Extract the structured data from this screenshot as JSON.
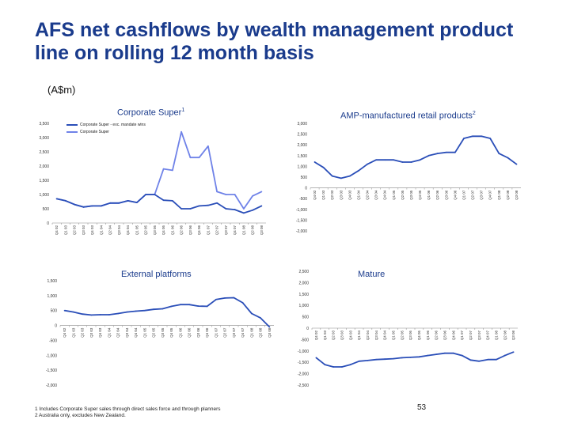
{
  "page": {
    "title": "AFS net cashflows by wealth management product line on rolling 12 month basis",
    "unit": "(A$m)",
    "footnote_1": "1 Includes Corporate Super sales through direct sales force and through planners",
    "footnote_2": "2 Australia only, excludes New Zealand.",
    "page_number": "53"
  },
  "chart_data": [
    {
      "id": "corporate-super",
      "type": "line",
      "title": "Corporate Super",
      "title_sup": "1",
      "categories": [
        "Q4 02",
        "Q1 03",
        "Q2 03",
        "Q3 03",
        "Q4 03",
        "Q1 04",
        "Q2 04",
        "Q3 04",
        "Q4 04",
        "Q1 05",
        "Q2 05",
        "Q3 05",
        "Q4 05",
        "Q1 06",
        "Q2 06",
        "Q3 06",
        "Q4 06",
        "Q1 07",
        "Q2 07",
        "Q3 07",
        "Q4 07",
        "Q1 08",
        "Q2 08",
        "Q3 08"
      ],
      "ylim": [
        0,
        3500
      ],
      "yticks": [
        "3,500",
        "3,000",
        "2,500",
        "2,000",
        "1,500",
        "1,000",
        "500",
        "0"
      ],
      "series": [
        {
          "name": "Corporate Super - exc. mandate wins",
          "color": "#2a4eb8",
          "values": [
            850,
            780,
            650,
            560,
            600,
            600,
            700,
            700,
            780,
            720,
            1000,
            1000,
            800,
            780,
            500,
            500,
            600,
            620,
            700,
            500,
            470,
            350,
            450,
            600
          ]
        },
        {
          "name": "Corporate Super",
          "color": "#6f82e8",
          "values": [
            850,
            780,
            650,
            560,
            600,
            600,
            700,
            700,
            780,
            720,
            1000,
            1000,
            1900,
            1850,
            3200,
            2300,
            2300,
            2700,
            1100,
            1000,
            1000,
            500,
            950,
            1100
          ]
        }
      ]
    },
    {
      "id": "amp-manufactured",
      "type": "line",
      "title": "AMP-manufactured retail products",
      "title_sup": "2",
      "categories": [
        "Q4 02",
        "Q1 03",
        "Q2 03",
        "Q3 03",
        "Q4 03",
        "Q1 04",
        "Q2 04",
        "Q3 04",
        "Q4 04",
        "Q1 05",
        "Q2 05",
        "Q3 05",
        "Q4 05",
        "Q1 06",
        "Q2 06",
        "Q3 06",
        "Q4 06",
        "Q1 07",
        "Q2 07",
        "Q3 07",
        "Q4 07",
        "Q1 08",
        "Q2 08",
        "Q3 08"
      ],
      "ylim": [
        -2000,
        3000
      ],
      "yticks": [
        "3,000",
        "2,500",
        "2,000",
        "1,500",
        "1,000",
        "500",
        "0",
        "-500",
        "-1,000",
        "-1,500",
        "-2,000"
      ],
      "series": [
        {
          "name": "",
          "color": "#2a4eb8",
          "values": [
            1200,
            950,
            550,
            450,
            550,
            800,
            1100,
            1300,
            1300,
            1300,
            1200,
            1200,
            1300,
            1500,
            1600,
            1650,
            1650,
            2300,
            2400,
            2400,
            2300,
            1600,
            1400,
            1100
          ]
        }
      ]
    },
    {
      "id": "external-platforms",
      "type": "line",
      "title": "External platforms",
      "title_sup": "",
      "categories": [
        "Q4 02",
        "Q1 03",
        "Q2 03",
        "Q3 03",
        "Q4 03",
        "Q1 04",
        "Q2 04",
        "Q3 04",
        "Q4 04",
        "Q1 05",
        "Q2 05",
        "Q3 05",
        "Q4 05",
        "Q1 06",
        "Q2 06",
        "Q3 06",
        "Q4 06",
        "Q1 07",
        "Q2 07",
        "Q3 07",
        "Q4 07",
        "Q1 08",
        "Q2 08",
        "Q3 08"
      ],
      "ylim": [
        -2000,
        1500
      ],
      "yticks": [
        "1,500",
        "1,000",
        "500",
        "0",
        "-500",
        "-1,000",
        "-1,500",
        "-2,000"
      ],
      "series": [
        {
          "name": "",
          "color": "#2a4eb8",
          "values": [
            500,
            450,
            380,
            350,
            360,
            360,
            400,
            450,
            480,
            500,
            540,
            560,
            640,
            700,
            700,
            650,
            640,
            870,
            920,
            930,
            760,
            400,
            250,
            -50
          ]
        }
      ]
    },
    {
      "id": "mature",
      "type": "line",
      "title": "Mature",
      "title_sup": "",
      "categories": [
        "Q4 02",
        "Q1 03",
        "Q2 03",
        "Q3 03",
        "Q4 03",
        "Q1 04",
        "Q2 04",
        "Q3 04",
        "Q4 04",
        "Q1 05",
        "Q2 05",
        "Q3 05",
        "Q4 05",
        "Q1 06",
        "Q2 06",
        "Q3 06",
        "Q4 06",
        "Q1 07",
        "Q2 07",
        "Q3 07",
        "Q4 07",
        "Q1 08",
        "Q2 08",
        "Q3 08"
      ],
      "ylim": [
        -2500,
        2500
      ],
      "yticks": [
        "2,500",
        "2,000",
        "1,500",
        "1,000",
        "500",
        "0",
        "-500",
        "-1,000",
        "-1,500",
        "-2,000",
        "-2,500"
      ],
      "series": [
        {
          "name": "",
          "color": "#2a4eb8",
          "values": [
            -1300,
            -1600,
            -1700,
            -1700,
            -1600,
            -1450,
            -1420,
            -1380,
            -1360,
            -1340,
            -1300,
            -1280,
            -1260,
            -1200,
            -1150,
            -1100,
            -1100,
            -1200,
            -1400,
            -1450,
            -1380,
            -1380,
            -1200,
            -1050
          ]
        }
      ]
    }
  ]
}
